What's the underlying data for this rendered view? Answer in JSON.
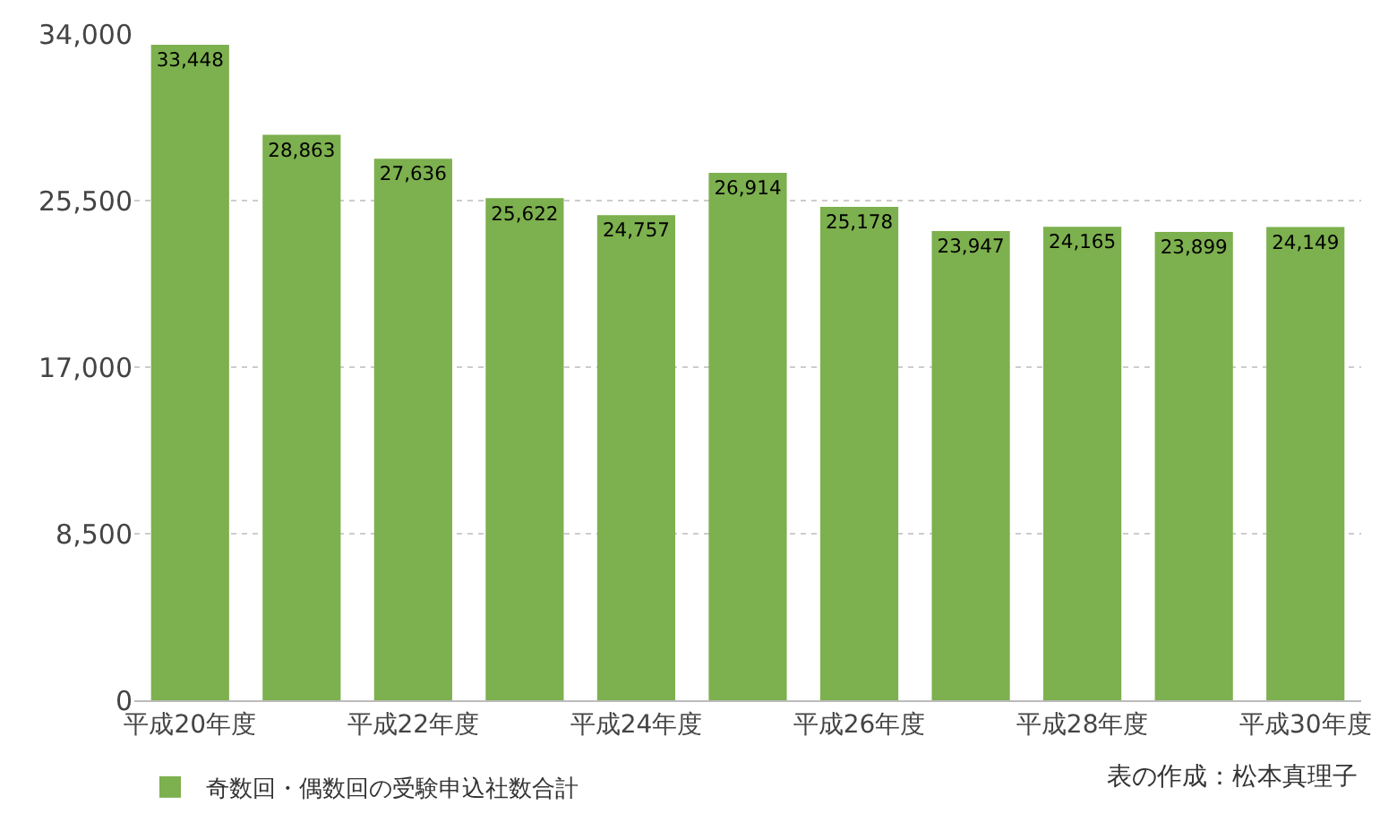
{
  "chart_data": {
    "type": "bar",
    "categories": [
      "平成20年度",
      null,
      "平成22年度",
      null,
      "平成24年度",
      null,
      "平成26年度",
      null,
      "平成28年度",
      null,
      "平成30年度"
    ],
    "series": [
      {
        "name": "奇数回・偶数回の受験申込社数合計",
        "color": "#7db04e",
        "values": [
          33448,
          28863,
          27636,
          25622,
          24757,
          26914,
          25178,
          23947,
          24165,
          23899,
          24149
        ],
        "value_labels": [
          "33,448",
          "28,863",
          "27,636",
          "25,622",
          "24,757",
          "26,914",
          "25,178",
          "23,947",
          "24,165",
          "23,899",
          "24,149"
        ]
      }
    ],
    "ylim": [
      0,
      34000
    ],
    "yticks": [
      {
        "value": 0,
        "label": "0"
      },
      {
        "value": 8500,
        "label": "8,500"
      },
      {
        "value": 17000,
        "label": "17,000"
      },
      {
        "value": 25500,
        "label": "25,500"
      },
      {
        "value": 34000,
        "label": "34,000"
      }
    ],
    "grid": "y",
    "legend": "bottom left",
    "annotations": [
      "表の作成：松本真理子"
    ]
  }
}
